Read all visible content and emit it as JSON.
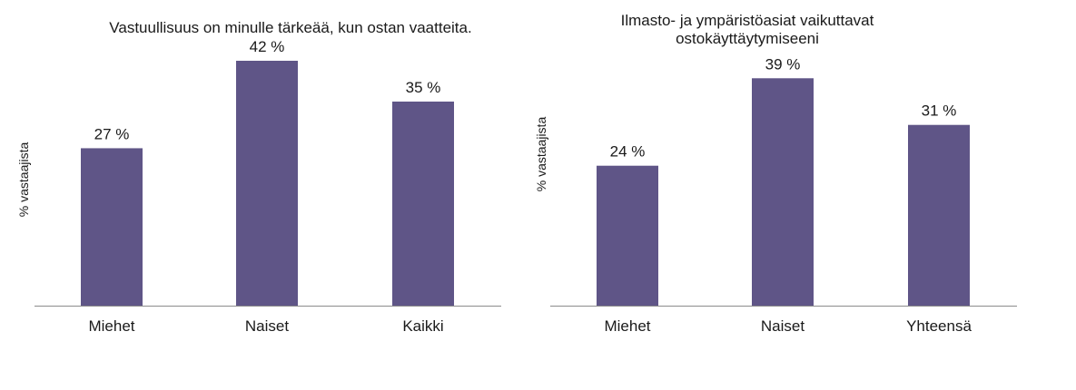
{
  "chart_data": [
    {
      "type": "bar",
      "title_lines": [
        "Vastuullisuus on minulle tärkeää, kun ostan vaatteita."
      ],
      "ylabel": "% vastaajista",
      "xlabel": "",
      "categories": [
        "Miehet",
        "Naiset",
        "Kaikki"
      ],
      "values": [
        27,
        42,
        35
      ],
      "value_labels": [
        "27 %",
        "42 %",
        "35 %"
      ],
      "unit": "%",
      "ylim": [
        0,
        42
      ],
      "grid": false,
      "legend": "none",
      "bar_color": "#5f5587",
      "axis_color": "#8c8c8c"
    },
    {
      "type": "bar",
      "title_lines": [
        "Ilmasto- ja ympäristöasiat vaikuttavat",
        "ostokäyttäytymiseeni"
      ],
      "ylabel": "% vastaajista",
      "xlabel": "",
      "categories": [
        "Miehet",
        "Naiset",
        "Yhteensä"
      ],
      "values": [
        24,
        39,
        31
      ],
      "value_labels": [
        "24 %",
        "39 %",
        "31 %"
      ],
      "unit": "%",
      "ylim": [
        0,
        42
      ],
      "grid": false,
      "legend": "none",
      "bar_color": "#5f5587",
      "axis_color": "#8c8c8c"
    }
  ]
}
